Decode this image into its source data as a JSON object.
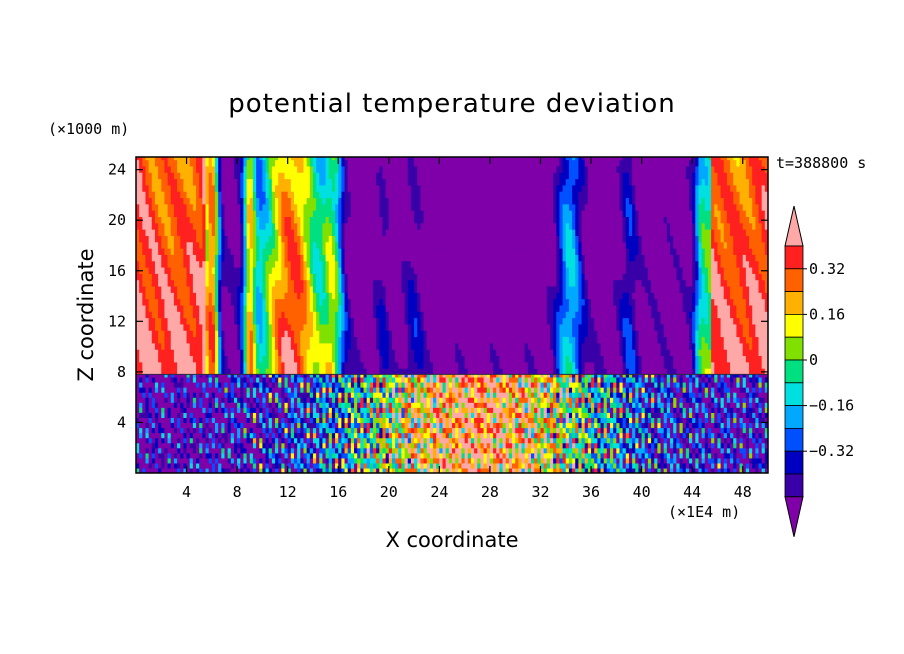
{
  "chart_data": {
    "type": "heatmap",
    "title": "potential temperature deviation",
    "xlabel": "X coordinate",
    "ylabel": "Z coordinate",
    "x_unit": "(×1E4 m)",
    "y_unit": "(×1000 m)",
    "time_label": "t=388800 s",
    "xlim": [
      0,
      50
    ],
    "ylim": [
      0,
      25
    ],
    "x_ticks": [
      4,
      8,
      12,
      16,
      20,
      24,
      28,
      32,
      36,
      40,
      44,
      48
    ],
    "y_ticks": [
      4,
      8,
      12,
      16,
      20,
      24
    ],
    "colorbar": {
      "levels": [
        -0.4,
        -0.32,
        -0.24,
        -0.16,
        -0.08,
        0,
        0.08,
        0.16,
        0.24,
        0.32,
        0.4
      ],
      "tick_labels": [
        "0.32",
        "0.16",
        "0",
        "−0.16",
        "−0.32"
      ],
      "tick_values": [
        0.32,
        0.16,
        0,
        -0.16,
        -0.32
      ],
      "extend": "both",
      "colors": [
        "#7f00a8",
        "#3a00a8",
        "#0000c0",
        "#0050ff",
        "#00a8ff",
        "#00e0e0",
        "#00e080",
        "#80e000",
        "#ffff00",
        "#ffb000",
        "#ff6000",
        "#ff2020",
        "#ffa8a8"
      ]
    },
    "upper_layer_columns": [
      {
        "x_range": [
          0,
          6
        ],
        "level": "high",
        "note": "positive anomaly, max > 0.4"
      },
      {
        "x_range": [
          6,
          9
        ],
        "level": "low",
        "note": "negative anomaly"
      },
      {
        "x_range": [
          9,
          15
        ],
        "level": "high"
      },
      {
        "x_range": [
          15,
          17
        ],
        "level": "mid"
      },
      {
        "x_range": [
          17,
          33
        ],
        "level": "low",
        "note": "widespread negative, min < -0.4 near top"
      },
      {
        "x_range": [
          33,
          35
        ],
        "level": "mid"
      },
      {
        "x_range": [
          35,
          44
        ],
        "level": "low"
      },
      {
        "x_range": [
          44,
          50
        ],
        "level": "high"
      }
    ],
    "layer_boundary_z": 7.8
  }
}
